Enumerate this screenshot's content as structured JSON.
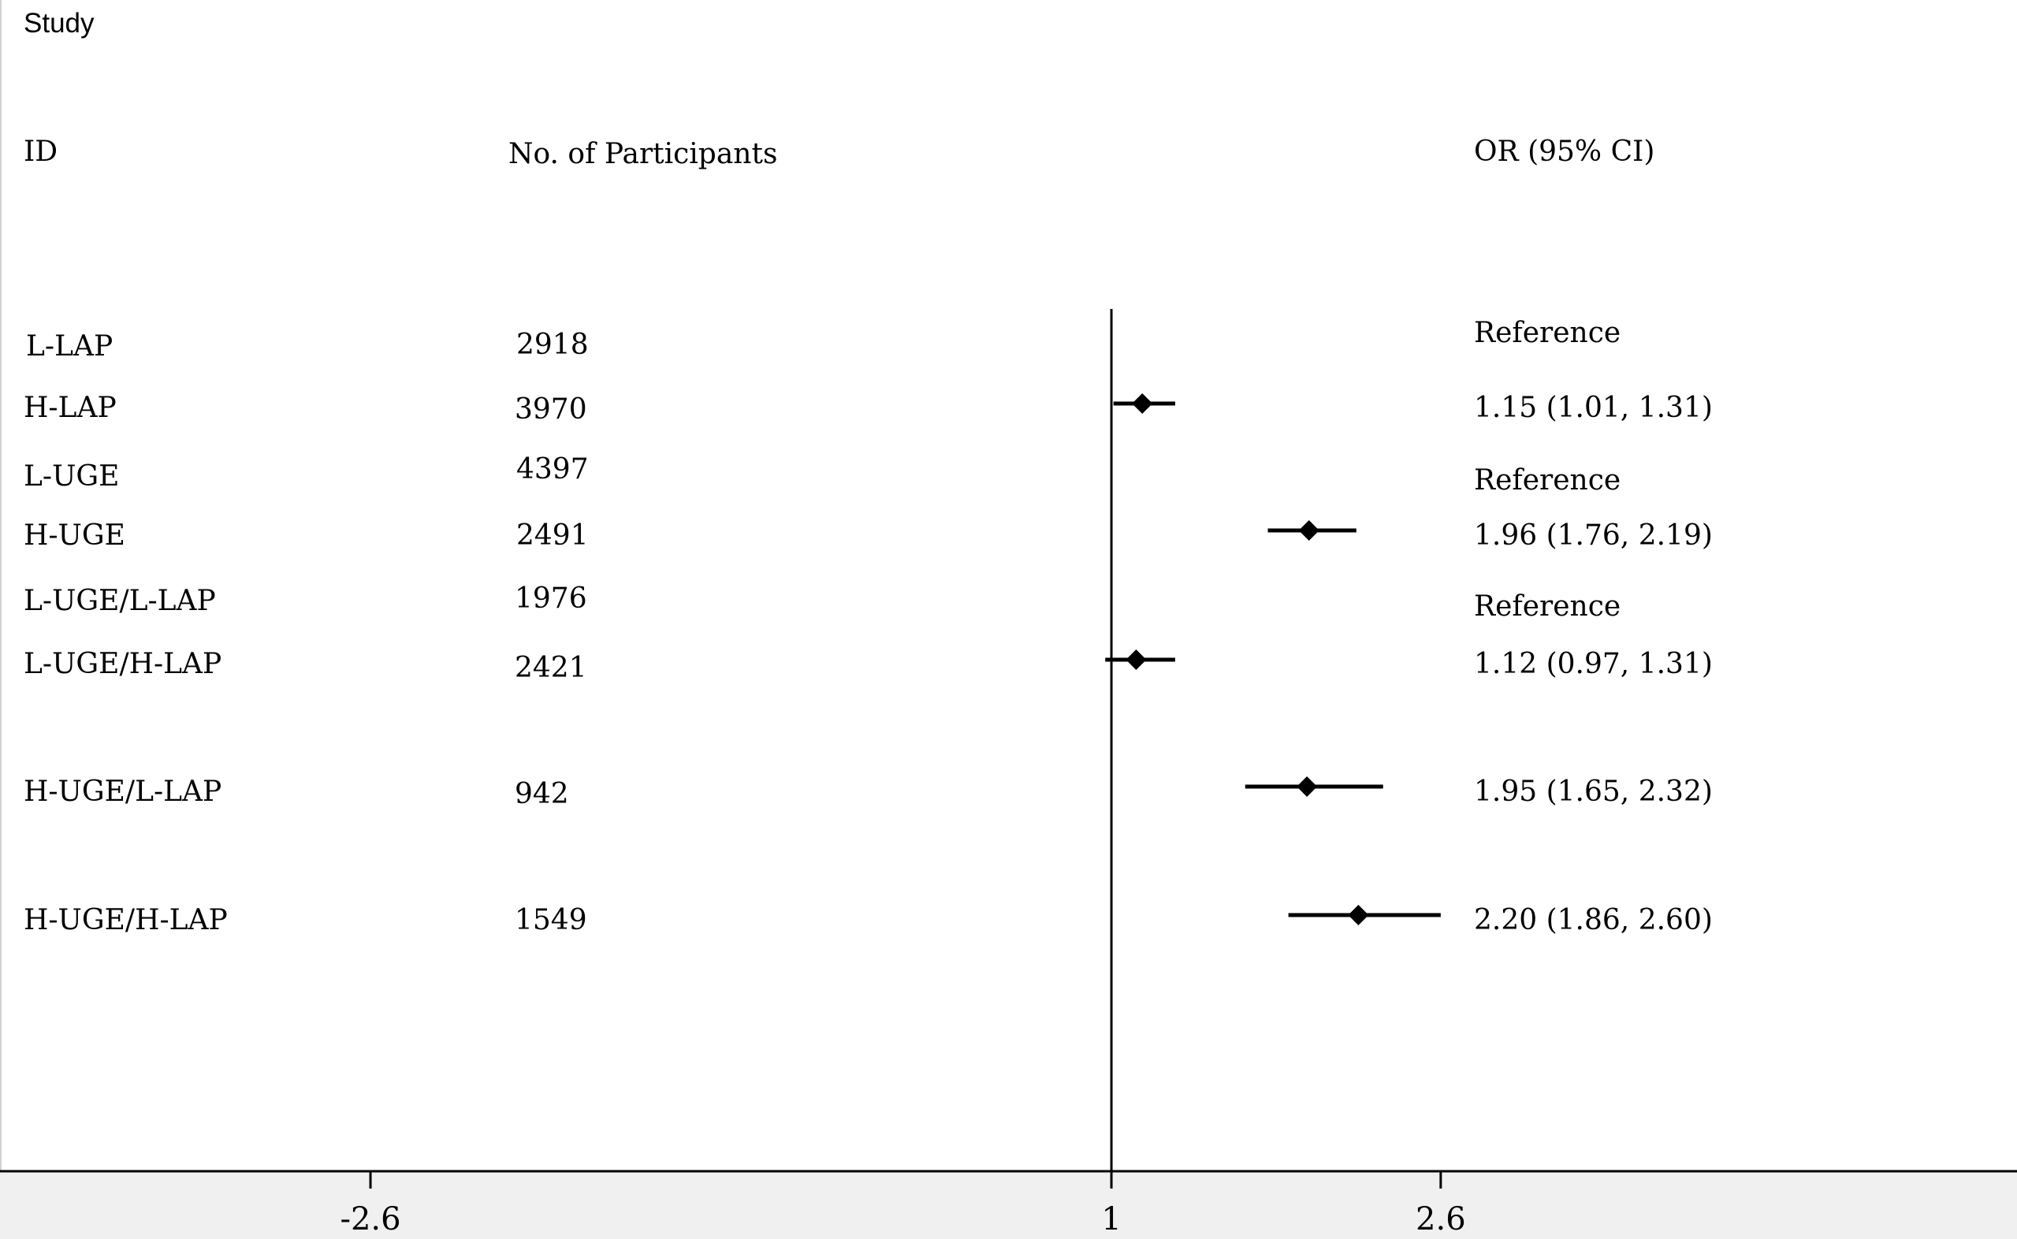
{
  "headers": {
    "study": "Study",
    "id": "ID",
    "participants": "No. of Participants",
    "or": "OR (95% CI)"
  },
  "rows": [
    {
      "id": "L-LAP",
      "n": "2918",
      "or_text": "Reference"
    },
    {
      "id": "H-LAP",
      "n": "3970",
      "or_text": "1.15 (1.01, 1.31)"
    },
    {
      "id": "L-UGE",
      "n": "4397",
      "or_text": "Reference"
    },
    {
      "id": "H-UGE",
      "n": "2491",
      "or_text": "1.96 (1.76, 2.19)"
    },
    {
      "id": "L-UGE/L-LAP",
      "n": "1976",
      "or_text": "Reference"
    },
    {
      "id": "L-UGE/H-LAP",
      "n": "2421",
      "or_text": "1.12 (0.97, 1.31)"
    },
    {
      "id": "H-UGE/L-LAP",
      "n": "942",
      "or_text": "1.95 (1.65, 2.32)"
    },
    {
      "id": "H-UGE/H-LAP",
      "n": "1549",
      "or_text": "2.20 (1.86, 2.60)"
    }
  ],
  "chart_data": {
    "type": "scatter",
    "title": "",
    "xlabel": "",
    "ylabel": "",
    "reference_line": 1,
    "xlim": [
      -4.4,
      5.4
    ],
    "x_ticks": [
      -2.6,
      1,
      2.6
    ],
    "x_tick_labels": [
      "-2.6",
      "1",
      "2.6"
    ],
    "grid": false,
    "series": [
      {
        "categories": [
          "H-LAP",
          "H-UGE",
          "L-UGE/H-LAP",
          "H-UGE/L-LAP",
          "H-UGE/H-LAP"
        ],
        "or": [
          1.15,
          1.96,
          1.12,
          1.95,
          2.2
        ],
        "lower": [
          1.01,
          1.76,
          0.97,
          1.65,
          1.86
        ],
        "upper": [
          1.31,
          2.19,
          1.31,
          2.32,
          2.6
        ]
      }
    ],
    "colors": {
      "marker": "#000000",
      "axis": "#000000"
    }
  }
}
